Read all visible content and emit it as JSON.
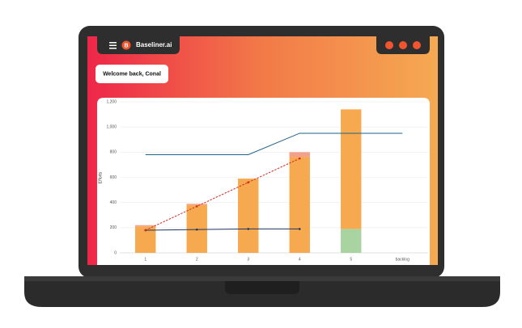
{
  "header": {
    "logo": "B",
    "brand": "Baseliner.ai",
    "welcome": "Welcome back, Conal"
  },
  "chart_data": {
    "type": "bar",
    "y_label": "Efforts",
    "categories": [
      "1",
      "2",
      "3",
      "4",
      "5",
      "backlog"
    ],
    "ylim": [
      0,
      1200
    ],
    "yticks": [
      0,
      200,
      400,
      600,
      800,
      {
        "value": 1000,
        "label": "1,000"
      },
      {
        "value": 1200,
        "label": "1,200"
      }
    ],
    "grid": true,
    "series": [
      {
        "kind": "bar",
        "color": "#a9d3a0",
        "values": [
          0,
          0,
          0,
          0,
          190,
          null
        ]
      },
      {
        "kind": "bar",
        "color": "#f7a94f",
        "values": [
          210,
          380,
          590,
          760,
          950,
          null
        ]
      },
      {
        "kind": "bar",
        "color": "#f4a189",
        "values": [
          10,
          10,
          0,
          40,
          0,
          null
        ]
      },
      {
        "kind": "line",
        "color": "#1d6385",
        "values": [
          780,
          780,
          780,
          950,
          950,
          950
        ]
      },
      {
        "kind": "line",
        "color": "#1e3560",
        "markers": true,
        "values": [
          180,
          185,
          190,
          190,
          null,
          null
        ]
      },
      {
        "kind": "line",
        "color": "#d52a1e",
        "markers": true,
        "dashed": true,
        "values": [
          180,
          370,
          560,
          750,
          null,
          null
        ]
      }
    ]
  }
}
